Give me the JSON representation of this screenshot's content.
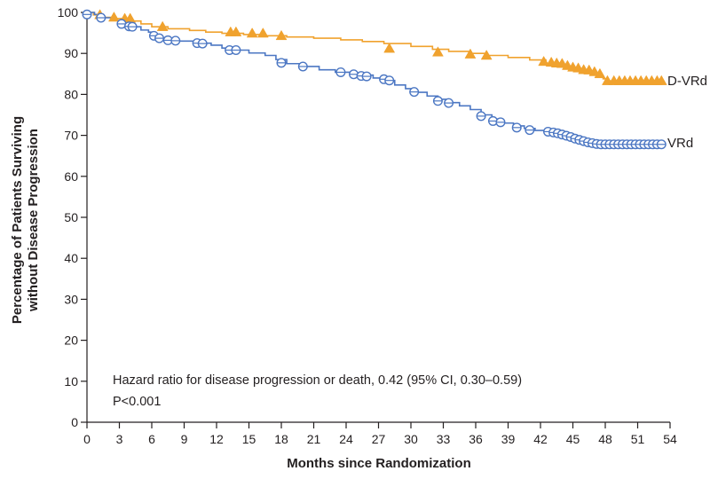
{
  "chart_data": {
    "type": "line",
    "subtype": "kaplan-meier",
    "xlabel": "Months since Randomization",
    "ylabel_line1": "Percentage of Patients Surviving",
    "ylabel_line2": "without Disease Progression",
    "xlim": [
      0,
      54
    ],
    "ylim": [
      0,
      100
    ],
    "xticks": [
      0,
      3,
      6,
      9,
      12,
      15,
      18,
      21,
      24,
      27,
      30,
      33,
      36,
      39,
      42,
      45,
      48,
      51,
      54
    ],
    "yticks": [
      0,
      10,
      20,
      30,
      40,
      50,
      60,
      70,
      80,
      90,
      100
    ],
    "grid": false,
    "annotation_line1": "Hazard ratio for disease progression or death, 0.42 (95% CI, 0.30–0.59)",
    "annotation_line2": "P<0.001",
    "series": [
      {
        "name": "D-VRd",
        "color": "#f0a22e",
        "marker": "triangle",
        "steps": [
          [
            0,
            100
          ],
          [
            0.6,
            99.4
          ],
          [
            1.5,
            98.8
          ],
          [
            2.7,
            98.5
          ],
          [
            3.6,
            97.9
          ],
          [
            5,
            97.2
          ],
          [
            6,
            96.5
          ],
          [
            7.5,
            96
          ],
          [
            9.5,
            95.6
          ],
          [
            11,
            95.2
          ],
          [
            12.5,
            94.9
          ],
          [
            14.5,
            94.6
          ],
          [
            16.5,
            94.3
          ],
          [
            18.5,
            94
          ],
          [
            21,
            93.7
          ],
          [
            23.5,
            93.3
          ],
          [
            25.5,
            92.9
          ],
          [
            27.5,
            92.4
          ],
          [
            30,
            91.7
          ],
          [
            32,
            91
          ],
          [
            33.5,
            90.5
          ],
          [
            35.5,
            90
          ],
          [
            37,
            89.5
          ],
          [
            39,
            89
          ],
          [
            41,
            88.4
          ],
          [
            42.5,
            87.6
          ],
          [
            43.5,
            87
          ],
          [
            44.5,
            86.4
          ],
          [
            45.5,
            85.8
          ],
          [
            46.5,
            85.2
          ],
          [
            47.3,
            84.5
          ],
          [
            47.8,
            83.8
          ],
          [
            48.2,
            83.3
          ],
          [
            53.3,
            83.3
          ]
        ],
        "censor": [
          [
            1.2,
            99.4
          ],
          [
            2.5,
            98.8
          ],
          [
            3.5,
            98.5
          ],
          [
            4,
            98.5
          ],
          [
            7,
            96.5
          ],
          [
            13.3,
            95.2
          ],
          [
            13.8,
            95.2
          ],
          [
            15.3,
            94.9
          ],
          [
            16.3,
            94.9
          ],
          [
            18,
            94.3
          ],
          [
            28,
            91.2
          ],
          [
            32.5,
            90.3
          ],
          [
            35.5,
            89.8
          ],
          [
            37,
            89.5
          ],
          [
            42.3,
            88
          ],
          [
            43,
            87.8
          ],
          [
            43.5,
            87.6
          ],
          [
            44,
            87.5
          ],
          [
            44.5,
            87
          ],
          [
            45,
            86.6
          ],
          [
            45.5,
            86.4
          ],
          [
            46,
            86
          ],
          [
            46.5,
            85.9
          ],
          [
            47,
            85.5
          ],
          [
            47.5,
            85
          ],
          [
            48.2,
            83.3
          ],
          [
            48.8,
            83.3
          ],
          [
            49.3,
            83.3
          ],
          [
            49.8,
            83.3
          ],
          [
            50.3,
            83.3
          ],
          [
            50.8,
            83.3
          ],
          [
            51.3,
            83.3
          ],
          [
            51.8,
            83.3
          ],
          [
            52.3,
            83.3
          ],
          [
            52.8,
            83.3
          ],
          [
            53.2,
            83.3
          ]
        ]
      },
      {
        "name": "VRd",
        "color": "#4c77c3",
        "marker": "circle",
        "steps": [
          [
            0,
            100
          ],
          [
            0.7,
            99.5
          ],
          [
            1.3,
            98.7
          ],
          [
            2.2,
            98
          ],
          [
            3,
            97.2
          ],
          [
            4,
            96.5
          ],
          [
            5,
            95.7
          ],
          [
            5.7,
            95.2
          ],
          [
            6.2,
            94.3
          ],
          [
            6.7,
            93.7
          ],
          [
            7.5,
            93.2
          ],
          [
            8.5,
            93
          ],
          [
            10,
            92.5
          ],
          [
            11.5,
            92
          ],
          [
            12.5,
            91.3
          ],
          [
            13.5,
            90.8
          ],
          [
            15,
            90.1
          ],
          [
            16.5,
            89.5
          ],
          [
            17.5,
            88.5
          ],
          [
            18.5,
            87.5
          ],
          [
            20,
            86.8
          ],
          [
            21.5,
            86
          ],
          [
            23,
            85.4
          ],
          [
            25,
            84.7
          ],
          [
            26.5,
            84
          ],
          [
            27.5,
            83.4
          ],
          [
            28.5,
            82.3
          ],
          [
            29.5,
            81.4
          ],
          [
            30.5,
            80.5
          ],
          [
            31.5,
            79.6
          ],
          [
            32.5,
            78.8
          ],
          [
            33.5,
            78
          ],
          [
            34.5,
            77.2
          ],
          [
            35.5,
            76.3
          ],
          [
            36.5,
            75
          ],
          [
            37.5,
            74
          ],
          [
            38.5,
            73
          ],
          [
            39.5,
            72.3
          ],
          [
            40.5,
            71.7
          ],
          [
            41.5,
            71.2
          ],
          [
            42.5,
            70.8
          ],
          [
            43.3,
            70.4
          ],
          [
            44,
            69.9
          ],
          [
            44.7,
            69.4
          ],
          [
            45.3,
            68.9
          ],
          [
            46,
            68.5
          ],
          [
            46.8,
            68.1
          ],
          [
            47.3,
            67.8
          ],
          [
            53.3,
            67.8
          ]
        ],
        "censor": [
          [
            0,
            99.5
          ],
          [
            1.3,
            98.7
          ],
          [
            3.2,
            97.2
          ],
          [
            3.9,
            96.6
          ],
          [
            4.2,
            96.5
          ],
          [
            6.2,
            94.3
          ],
          [
            6.7,
            93.7
          ],
          [
            7.5,
            93.2
          ],
          [
            8.2,
            93.1
          ],
          [
            10.2,
            92.5
          ],
          [
            10.7,
            92.4
          ],
          [
            13.2,
            90.8
          ],
          [
            13.8,
            90.8
          ],
          [
            18,
            87.7
          ],
          [
            20,
            86.8
          ],
          [
            23.5,
            85.4
          ],
          [
            24.7,
            84.9
          ],
          [
            25.4,
            84.5
          ],
          [
            25.9,
            84.4
          ],
          [
            27.5,
            83.7
          ],
          [
            28,
            83.4
          ],
          [
            30.3,
            80.6
          ],
          [
            32.5,
            78.4
          ],
          [
            33.5,
            77.9
          ],
          [
            36.5,
            74.7
          ],
          [
            37.6,
            73.5
          ],
          [
            38.3,
            73.2
          ],
          [
            39.8,
            71.9
          ],
          [
            41,
            71.3
          ],
          [
            42.7,
            70.9
          ],
          [
            43.2,
            70.7
          ],
          [
            43.6,
            70.5
          ],
          [
            44,
            70.2
          ],
          [
            44.4,
            69.9
          ],
          [
            44.8,
            69.6
          ],
          [
            45.2,
            69.2
          ],
          [
            45.6,
            68.9
          ],
          [
            46,
            68.6
          ],
          [
            46.4,
            68.3
          ],
          [
            46.8,
            68.1
          ],
          [
            47.2,
            67.9
          ],
          [
            47.6,
            67.8
          ],
          [
            48,
            67.8
          ],
          [
            48.4,
            67.8
          ],
          [
            48.8,
            67.8
          ],
          [
            49.2,
            67.8
          ],
          [
            49.6,
            67.8
          ],
          [
            50,
            67.8
          ],
          [
            50.4,
            67.8
          ],
          [
            50.8,
            67.8
          ],
          [
            51.2,
            67.8
          ],
          [
            51.6,
            67.8
          ],
          [
            52,
            67.8
          ],
          [
            52.4,
            67.8
          ],
          [
            52.8,
            67.8
          ],
          [
            53.2,
            67.8
          ]
        ]
      }
    ]
  }
}
